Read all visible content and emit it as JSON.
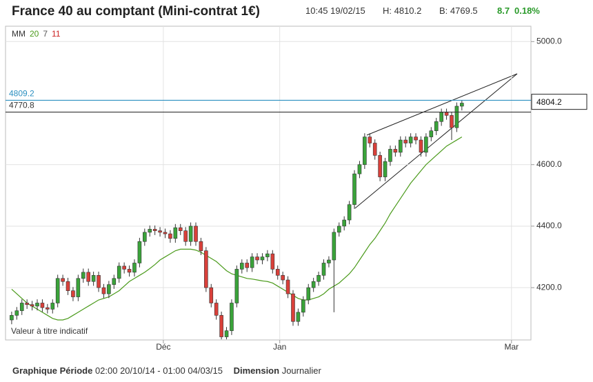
{
  "header": {
    "title": "France 40 au comptant (Mini-contrat 1€)",
    "time": "10:45 19/02/15",
    "high": "H: 4810.2",
    "bid": "B: 4769.5",
    "change": "8.7",
    "change_pct": "0.18%"
  },
  "chart_data": {
    "type": "candlestick",
    "legend": {
      "label": "MM",
      "periods": [
        {
          "text": "20",
          "color": "#4a9a1a"
        },
        {
          "text": "7",
          "color": "#555555"
        },
        {
          "text": "11",
          "color": "#cc2222"
        }
      ]
    },
    "annotation": "Valeur à titre indicatif",
    "categories": [
      null,
      null,
      null,
      null,
      null,
      null,
      null,
      null,
      null,
      null,
      null,
      null,
      null,
      null,
      null,
      null,
      null,
      null,
      null,
      null,
      null,
      null,
      null,
      null,
      null,
      null,
      null,
      null,
      null,
      null,
      null,
      null,
      null,
      null,
      null,
      null,
      null,
      null,
      null,
      null,
      null,
      null,
      null,
      null,
      null,
      null,
      null,
      null,
      null,
      null,
      null,
      null,
      null,
      null,
      null,
      null,
      null,
      null,
      null,
      null,
      null,
      null,
      null,
      null,
      null,
      null,
      null,
      null,
      null,
      null,
      null,
      null,
      null,
      null,
      null,
      null,
      null,
      null,
      null,
      null,
      null,
      null,
      null,
      null,
      null,
      null,
      null,
      null,
      null
    ],
    "open": [
      4095,
      4110,
      4125,
      4150,
      4145,
      4140,
      4150,
      4135,
      4130,
      4150,
      4230,
      4220,
      4190,
      4170,
      4230,
      4250,
      4220,
      4240,
      4200,
      4180,
      4210,
      4230,
      4270,
      4260,
      4250,
      4280,
      4350,
      4380,
      4390,
      4385,
      4380,
      4375,
      4360,
      4395,
      4385,
      4350,
      4400,
      4350,
      4320,
      4200,
      4150,
      4110,
      4040,
      4060,
      4150,
      4260,
      4280,
      4265,
      4300,
      4290,
      4300,
      4310,
      4260,
      4240,
      4225,
      4180,
      4090,
      4120,
      4160,
      4200,
      4220,
      4240,
      4280,
      4290,
      4380,
      4400,
      4420,
      4470,
      4570,
      4600,
      4690,
      4670,
      4630,
      4560,
      4610,
      4650,
      4640,
      4680,
      4670,
      4690,
      4680,
      4640,
      4690,
      4710,
      4740,
      4770,
      4760,
      4720,
      4790
    ],
    "high": [
      4122,
      4137,
      4162,
      4162,
      4157,
      4162,
      4162,
      4147,
      4162,
      4242,
      4242,
      4232,
      4202,
      4242,
      4262,
      4262,
      4252,
      4252,
      4212,
      4222,
      4242,
      4282,
      4282,
      4272,
      4292,
      4362,
      4392,
      4402,
      4402,
      4397,
      4392,
      4387,
      4407,
      4407,
      4397,
      4412,
      4412,
      4362,
      4332,
      4212,
      4162,
      4122,
      4072,
      4162,
      4272,
      4292,
      4292,
      4312,
      4312,
      4312,
      4322,
      4322,
      4272,
      4252,
      4237,
      4192,
      4132,
      4172,
      4212,
      4232,
      4252,
      4292,
      4302,
      4392,
      4412,
      4432,
      4482,
      4582,
      4612,
      4702,
      4702,
      4682,
      4642,
      4622,
      4662,
      4662,
      4692,
      4692,
      4702,
      4702,
      4692,
      4702,
      4722,
      4752,
      4782,
      4782,
      4772,
      4802,
      4810
    ],
    "low": [
      4081,
      4096,
      4111,
      4131,
      4126,
      4126,
      4121,
      4116,
      4116,
      4136,
      4206,
      4176,
      4156,
      4156,
      4216,
      4206,
      4206,
      4186,
      4166,
      4166,
      4196,
      4216,
      4246,
      4236,
      4236,
      4266,
      4336,
      4366,
      4371,
      4366,
      4361,
      4346,
      4346,
      4371,
      4336,
      4336,
      4336,
      4306,
      4186,
      4136,
      4096,
      4032,
      4032,
      4046,
      4136,
      4246,
      4251,
      4251,
      4276,
      4276,
      4286,
      4246,
      4226,
      4211,
      4166,
      4076,
      4076,
      4106,
      4146,
      4186,
      4206,
      4226,
      4266,
      4120,
      4366,
      4386,
      4406,
      4456,
      4556,
      4586,
      4656,
      4616,
      4546,
      4546,
      4596,
      4626,
      4626,
      4656,
      4656,
      4666,
      4626,
      4626,
      4676,
      4696,
      4726,
      4746,
      4680,
      4706,
      4776
    ],
    "close": [
      4110,
      4125,
      4150,
      4145,
      4140,
      4150,
      4135,
      4130,
      4150,
      4230,
      4220,
      4190,
      4170,
      4230,
      4250,
      4220,
      4240,
      4200,
      4180,
      4210,
      4230,
      4270,
      4260,
      4250,
      4280,
      4350,
      4380,
      4390,
      4385,
      4380,
      4375,
      4360,
      4395,
      4385,
      4350,
      4400,
      4350,
      4320,
      4200,
      4150,
      4110,
      4040,
      4060,
      4150,
      4260,
      4280,
      4265,
      4300,
      4290,
      4300,
      4310,
      4260,
      4240,
      4225,
      4180,
      4090,
      4120,
      4160,
      4200,
      4220,
      4240,
      4280,
      4290,
      4380,
      4400,
      4420,
      4470,
      4570,
      4600,
      4690,
      4670,
      4630,
      4560,
      4610,
      4650,
      4640,
      4680,
      4670,
      4690,
      4680,
      4640,
      4690,
      4710,
      4740,
      4770,
      4760,
      4720,
      4790,
      4800
    ],
    "up_color": "#3aa33a",
    "down_color": "#d9403a",
    "moving_average": {
      "color": "#4a9a1a",
      "values": [
        4195,
        4180,
        4165,
        4150,
        4140,
        4130,
        4120,
        4110,
        4100,
        4095,
        4095,
        4100,
        4110,
        4120,
        4130,
        4140,
        4150,
        4160,
        4165,
        4170,
        4180,
        4190,
        4205,
        4220,
        4230,
        4240,
        4250,
        4262,
        4275,
        4290,
        4300,
        4310,
        4320,
        4325,
        4325,
        4325,
        4322,
        4315,
        4305,
        4295,
        4285,
        4270,
        4255,
        4245,
        4240,
        4235,
        4230,
        4228,
        4225,
        4222,
        4220,
        4215,
        4205,
        4195,
        4185,
        4175,
        4165,
        4160,
        4160,
        4165,
        4170,
        4180,
        4195,
        4205,
        4215,
        4230,
        4245,
        4265,
        4290,
        4315,
        4340,
        4360,
        4385,
        4410,
        4440,
        4465,
        4490,
        4515,
        4540,
        4560,
        4580,
        4600,
        4615,
        4630,
        4645,
        4660,
        4670,
        4680,
        4690
      ]
    },
    "levels": [
      {
        "value": 4809.2,
        "color": "#2a8fc0"
      },
      {
        "value": 4770.8,
        "color": "#333333"
      }
    ],
    "last_price": 4804.2,
    "xlim": [
      -1.2,
      101.5
    ],
    "xticks": [
      {
        "value": 29.65,
        "label": "Déc"
      },
      {
        "value": 52.4,
        "label": "Jan"
      },
      {
        "value": 97.7,
        "label": "Mar"
      }
    ],
    "ylim": [
      4030,
      5050
    ],
    "yticks": [
      {
        "value": 4200,
        "label": "4200.0"
      },
      {
        "value": 4400,
        "label": "4400.0"
      },
      {
        "value": 4600,
        "label": "4600.0"
      },
      {
        "value": 5000,
        "label": "5000.0"
      }
    ],
    "grid": true
  },
  "footer": {
    "period_label": "Graphique Période",
    "period": "02:00 20/10/14 - 01:00 04/03/15",
    "dimension_label": "Dimension",
    "dimension": "Journalier"
  }
}
